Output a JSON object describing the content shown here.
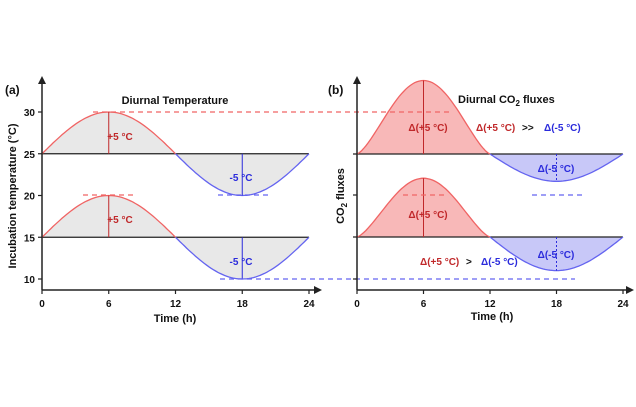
{
  "colors": {
    "warm": "#f06464",
    "cool": "#6464f0",
    "warm_text": "#c0282a",
    "cool_text": "#2b2bdc",
    "fill_a": "#e8e8e8",
    "fill_warm": "#f8b8b8",
    "fill_cool": "#c8c8f8"
  },
  "chart_data": [
    {
      "type": "line",
      "panel": "(a)",
      "title": "Diurnal Temperature",
      "xlabel": "Time (h)",
      "ylabel": "Incubation temperature (°C)",
      "xlim": [
        0,
        24
      ],
      "ylim": [
        10,
        30
      ],
      "xticks": [
        "0",
        "6",
        "12",
        "18",
        "24"
      ],
      "yticks": [
        "10",
        "15",
        "20",
        "25",
        "30"
      ],
      "series": [
        {
          "mean": 25,
          "amplitude": 5,
          "x": [
            0,
            6,
            12,
            18,
            24
          ],
          "y": [
            25,
            30,
            25,
            20,
            25
          ]
        },
        {
          "mean": 15,
          "amplitude": 5,
          "x": [
            0,
            6,
            12,
            18,
            24
          ],
          "y": [
            15,
            20,
            15,
            10,
            15
          ]
        }
      ],
      "annotations": {
        "warm": "+5 °C",
        "cool": "-5 °C"
      }
    },
    {
      "type": "line",
      "panel": "(b)",
      "title": "Diurnal CO",
      "title_sub": "2",
      "title_rest": " fluxes",
      "xlabel": "Time (h)",
      "ylabel": "CO",
      "ylabel_sub": "2",
      "ylabel_rest": " fluxes",
      "xlim": [
        0,
        24
      ],
      "xticks": [
        "0",
        "6",
        "12",
        "18",
        "24"
      ],
      "series": [
        {
          "warm_peak": 1.75,
          "cool_trough": -0.65,
          "x": [
            0,
            6,
            12,
            18,
            24
          ]
        },
        {
          "warm_peak": 1.4,
          "cool_trough": -0.8,
          "x": [
            0,
            6,
            12,
            18,
            24
          ]
        }
      ],
      "annotations": {
        "warm": "Δ(+5 °C)",
        "cool": "Δ(-5 °C)",
        "rel_top": ">>",
        "rel_bottom": ">"
      }
    }
  ]
}
